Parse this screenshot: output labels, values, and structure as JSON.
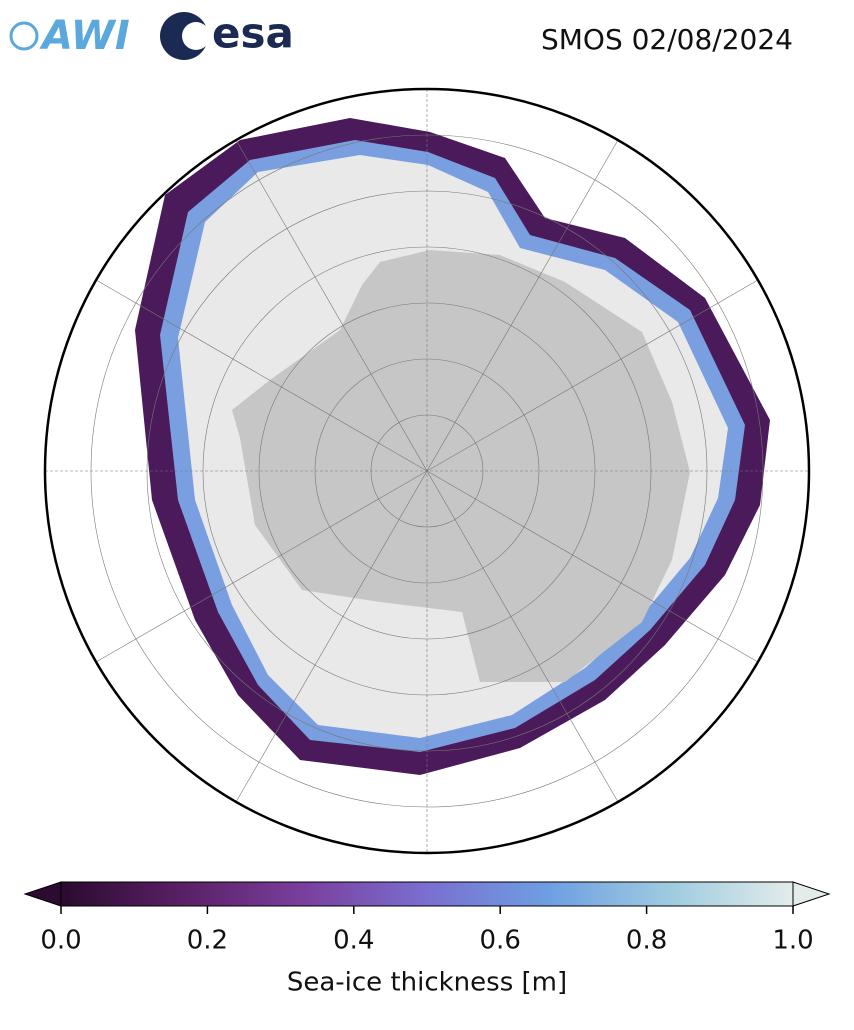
{
  "header": {
    "logo_left": "AWI",
    "logo_right": "esa",
    "title": "SMOS 02/08/2024"
  },
  "colorbar": {
    "label": "Sea-ice thickness [m]",
    "lim": [
      0,
      1
    ],
    "ticks": [
      {
        "value": 0,
        "label": "0.0"
      },
      0.2,
      0.4,
      0.6,
      0.8,
      {
        "value": 1,
        "label": "1.0"
      }
    ],
    "colors": [
      "#2b0b2f",
      "#5a2066",
      "#7a3f9e",
      "#7a6fd0",
      "#6e9fe2",
      "#9fcbe0",
      "#e3ecea"
    ]
  }
}
